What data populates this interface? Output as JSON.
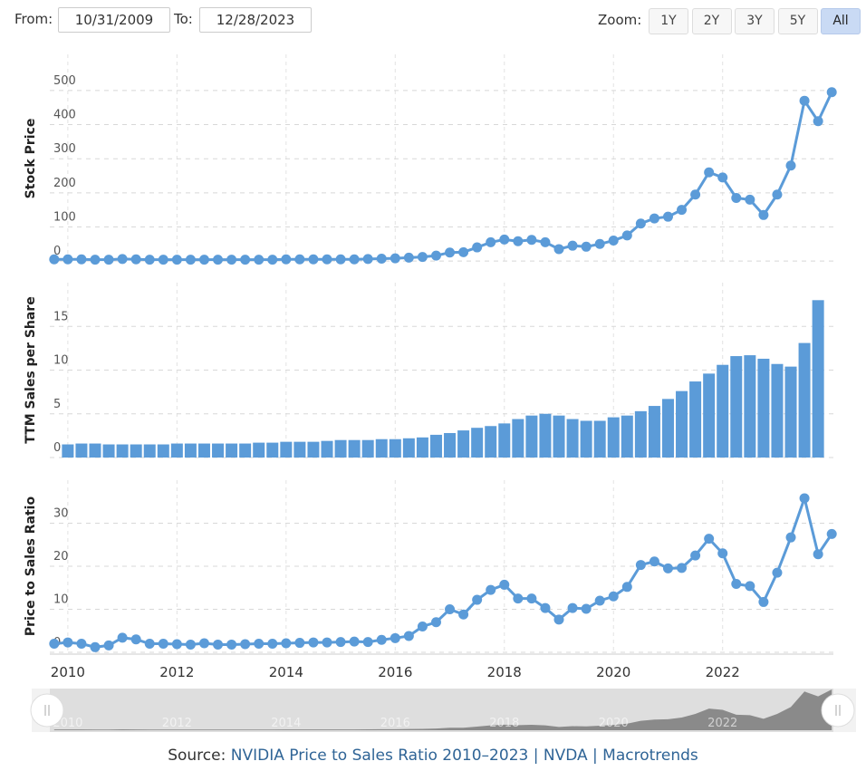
{
  "controls": {
    "from_label": "From:",
    "from": "10/31/2009",
    "to_label": "To:",
    "to": "12/28/2023",
    "zoom_label": "Zoom:",
    "zoom": [
      "1Y",
      "2Y",
      "3Y",
      "5Y",
      "All"
    ],
    "zoom_active": "All"
  },
  "chart_data": [
    {
      "type": "line",
      "ylabel": "Stock Price",
      "color": "#5b9bd8",
      "x": [
        2009.75,
        2010,
        2010.25,
        2010.5,
        2010.75,
        2011,
        2011.25,
        2011.5,
        2011.75,
        2012,
        2012.25,
        2012.5,
        2012.75,
        2013,
        2013.25,
        2013.5,
        2013.75,
        2014,
        2014.25,
        2014.5,
        2014.75,
        2015,
        2015.25,
        2015.5,
        2015.75,
        2016,
        2016.25,
        2016.5,
        2016.75,
        2017,
        2017.25,
        2017.5,
        2017.75,
        2018,
        2018.25,
        2018.5,
        2018.75,
        2019,
        2019.25,
        2019.5,
        2019.75,
        2020,
        2020.25,
        2020.5,
        2020.75,
        2021,
        2021.25,
        2021.5,
        2021.75,
        2022,
        2022.25,
        2022.5,
        2022.75,
        2023,
        2023.25,
        2023.5,
        2023.75,
        2024
      ],
      "values": [
        5,
        5,
        5,
        4,
        4,
        6,
        5,
        4,
        4,
        4,
        4,
        4,
        4,
        4,
        4,
        4,
        4,
        5,
        5,
        5,
        5,
        5,
        5,
        6,
        7,
        8,
        10,
        12,
        16,
        25,
        26,
        40,
        55,
        63,
        58,
        62,
        55,
        35,
        45,
        42,
        50,
        60,
        75,
        110,
        125,
        130,
        150,
        195,
        260,
        245,
        185,
        180,
        135,
        195,
        280,
        470,
        410,
        495
      ],
      "xlim": [
        2009.67,
        2024.03
      ],
      "xticks": [
        2010,
        2012,
        2014,
        2016,
        2018,
        2020,
        2022
      ],
      "ylim": [
        -5,
        606
      ],
      "yticks": [
        0,
        100,
        200,
        300,
        400,
        500
      ],
      "grid": true
    },
    {
      "type": "bar",
      "ylabel": "TTM Sales per Share",
      "color": "#5b9bd8",
      "x": [
        2010,
        2010.25,
        2010.5,
        2010.75,
        2011,
        2011.25,
        2011.5,
        2011.75,
        2012,
        2012.25,
        2012.5,
        2012.75,
        2013,
        2013.25,
        2013.5,
        2013.75,
        2014,
        2014.25,
        2014.5,
        2014.75,
        2015,
        2015.25,
        2015.5,
        2015.75,
        2016,
        2016.25,
        2016.5,
        2016.75,
        2017,
        2017.25,
        2017.5,
        2017.75,
        2018,
        2018.25,
        2018.5,
        2018.75,
        2019,
        2019.25,
        2019.5,
        2019.75,
        2020,
        2020.25,
        2020.5,
        2020.75,
        2021,
        2021.25,
        2021.5,
        2021.75,
        2022,
        2022.25,
        2022.5,
        2022.75,
        2023,
        2023.25,
        2023.5,
        2023.75
      ],
      "values": [
        1.5,
        1.6,
        1.6,
        1.5,
        1.5,
        1.5,
        1.5,
        1.5,
        1.6,
        1.6,
        1.6,
        1.6,
        1.6,
        1.6,
        1.7,
        1.7,
        1.8,
        1.8,
        1.8,
        1.9,
        2.0,
        2.0,
        2.0,
        2.1,
        2.1,
        2.2,
        2.3,
        2.6,
        2.8,
        3.1,
        3.4,
        3.6,
        3.9,
        4.4,
        4.8,
        5.0,
        4.8,
        4.4,
        4.2,
        4.2,
        4.6,
        4.8,
        5.3,
        5.9,
        6.7,
        7.6,
        8.7,
        9.6,
        10.6,
        11.6,
        11.7,
        11.3,
        10.7,
        10.4,
        13.1,
        18.0
      ],
      "xlim": [
        2009.67,
        2024.03
      ],
      "xticks": [
        2010,
        2012,
        2014,
        2016,
        2018,
        2020,
        2022
      ],
      "ylim": [
        0,
        20
      ],
      "yticks": [
        0,
        5,
        10,
        15
      ],
      "grid": true
    },
    {
      "type": "line",
      "ylabel": "Price to Sales Ratio",
      "color": "#5b9bd8",
      "x": [
        2009.75,
        2010,
        2010.25,
        2010.5,
        2010.75,
        2011,
        2011.25,
        2011.5,
        2011.75,
        2012,
        2012.25,
        2012.5,
        2012.75,
        2013,
        2013.25,
        2013.5,
        2013.75,
        2014,
        2014.25,
        2014.5,
        2014.75,
        2015,
        2015.25,
        2015.5,
        2015.75,
        2016,
        2016.25,
        2016.5,
        2016.75,
        2017,
        2017.25,
        2017.5,
        2017.75,
        2018,
        2018.25,
        2018.5,
        2018.75,
        2019,
        2019.25,
        2019.5,
        2019.75,
        2020,
        2020.25,
        2020.5,
        2020.75,
        2021,
        2021.25,
        2021.5,
        2021.75,
        2022,
        2022.25,
        2022.5,
        2022.75,
        2023,
        2023.25,
        2023.5,
        2023.75,
        2024
      ],
      "values": [
        2.0,
        2.3,
        2.0,
        1.2,
        1.6,
        3.4,
        3.0,
        2.0,
        2.0,
        1.9,
        1.8,
        2.1,
        1.8,
        1.8,
        1.9,
        2.0,
        2.0,
        2.1,
        2.2,
        2.3,
        2.3,
        2.4,
        2.5,
        2.4,
        2.9,
        3.3,
        3.8,
        6.0,
        7.0,
        10.0,
        8.8,
        12.2,
        14.5,
        15.7,
        12.5,
        12.5,
        10.3,
        7.6,
        10.3,
        10.1,
        12.0,
        13.0,
        15.2,
        20.3,
        21.1,
        19.5,
        19.6,
        22.5,
        26.4,
        23.0,
        15.9,
        15.4,
        11.7,
        18.5,
        26.7,
        35.8,
        22.8,
        27.5
      ],
      "xlim": [
        2009.67,
        2024.03
      ],
      "xticks": [
        2010,
        2012,
        2014,
        2016,
        2018,
        2020,
        2022
      ],
      "ylim": [
        0,
        40
      ],
      "yticks": [
        0,
        10,
        20,
        30
      ],
      "grid": true
    }
  ],
  "source": {
    "label": "Source:",
    "link": "NVIDIA Price to Sales Ratio 2010–2023 | NVDA | Macrotrends"
  }
}
